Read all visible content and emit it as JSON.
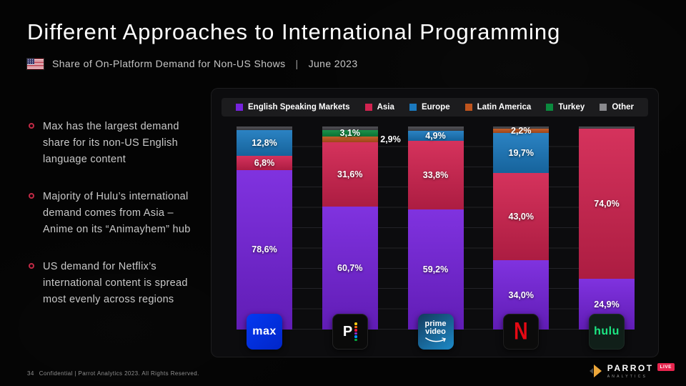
{
  "slide": {
    "title": "Different Approaches to International Programming",
    "subtitle": "Share of On-Platform Demand for Non-US Shows",
    "subtitle_separator": "|",
    "subtitle_date": "June 2023",
    "bullets": [
      "Max has the largest demand share for its non-US English language content",
      "Majority of Hulu’s international demand comes from Asia – Anime on its “Animayhem” hub",
      "US demand for Netflix’s international content is spread most evenly across regions"
    ],
    "footer": {
      "page_number": "34",
      "rights": "Confidential | Parrot Analytics 2023. All Rights Reserved.",
      "brand_name": "PARROT",
      "brand_sub": "ANALYTICS",
      "brand_badge": "LIVE"
    }
  },
  "chart_data": {
    "type": "bar",
    "variant": "100%-stacked-columns",
    "title": "Share of On-Platform Demand for Non-US Shows, June 2023",
    "unit": "%",
    "decimal_separator": ",",
    "ylim": [
      0,
      100
    ],
    "gridlines_every_pct": 10,
    "legend_position": "top",
    "legend": [
      {
        "key": "english",
        "label": "English Speaking Markets"
      },
      {
        "key": "asia",
        "label": "Asia"
      },
      {
        "key": "europe",
        "label": "Europe"
      },
      {
        "key": "latam",
        "label": "Latin America"
      },
      {
        "key": "turkey",
        "label": "Turkey"
      },
      {
        "key": "other_legend",
        "label": "Other"
      }
    ],
    "colors": {
      "english": "#7623dd",
      "asia": "#d22350",
      "europe": "#1b79be",
      "latam": "#bf541d",
      "turkey": "#0b8a3e",
      "other": "#45454a",
      "other_legend": "#8a8a8e"
    },
    "platforms": [
      {
        "name": "Max",
        "logo_text": "max",
        "segments": [
          {
            "region": "English Speaking Markets",
            "key": "english",
            "value": 78.6,
            "label": "78,6%"
          },
          {
            "region": "Asia",
            "key": "asia",
            "value": 6.8,
            "label": "6,8%"
          },
          {
            "region": "Europe",
            "key": "europe",
            "value": 12.8,
            "label": "12,8%"
          },
          {
            "region": "Other",
            "key": "other",
            "value": 1.8,
            "label": ""
          }
        ]
      },
      {
        "name": "Peacock",
        "logo_text": "P",
        "segments": [
          {
            "region": "English Speaking Markets",
            "key": "english",
            "value": 60.7,
            "label": "60,7%"
          },
          {
            "region": "Asia",
            "key": "asia",
            "value": 31.6,
            "label": "31,6%"
          },
          {
            "region": "Latin America",
            "key": "latam",
            "value": 2.9,
            "label": "2,9%"
          },
          {
            "region": "Turkey",
            "key": "turkey",
            "value": 3.1,
            "label": "3,1%"
          },
          {
            "region": "Other",
            "key": "other",
            "value": 1.7,
            "label": ""
          }
        ]
      },
      {
        "name": "Prime Video",
        "logo_text_1": "prime",
        "logo_text_2": "video",
        "segments": [
          {
            "region": "English Speaking Markets",
            "key": "english",
            "value": 59.2,
            "label": "59,2%"
          },
          {
            "region": "Asia",
            "key": "asia",
            "value": 33.8,
            "label": "33,8%"
          },
          {
            "region": "Europe",
            "key": "europe",
            "value": 4.9,
            "label": "4,9%"
          },
          {
            "region": "Other",
            "key": "other",
            "value": 2.1,
            "label": ""
          }
        ]
      },
      {
        "name": "Netflix",
        "logo_text": "N",
        "segments": [
          {
            "region": "English Speaking Markets",
            "key": "english",
            "value": 34.0,
            "label": "34,0%"
          },
          {
            "region": "Asia",
            "key": "asia",
            "value": 43.0,
            "label": "43,0%"
          },
          {
            "region": "Europe",
            "key": "europe",
            "value": 19.7,
            "label": "19,7%"
          },
          {
            "region": "Latin America",
            "key": "latam",
            "value": 2.2,
            "label": "2,2%"
          },
          {
            "region": "Other",
            "key": "other",
            "value": 1.1,
            "label": ""
          }
        ]
      },
      {
        "name": "Hulu",
        "logo_text": "hulu",
        "segments": [
          {
            "region": "English Speaking Markets",
            "key": "english",
            "value": 24.9,
            "label": "24,9%"
          },
          {
            "region": "Asia",
            "key": "asia",
            "value": 74.0,
            "label": "74,0%"
          },
          {
            "region": "Other",
            "key": "other",
            "value": 1.1,
            "label": ""
          }
        ]
      }
    ]
  }
}
